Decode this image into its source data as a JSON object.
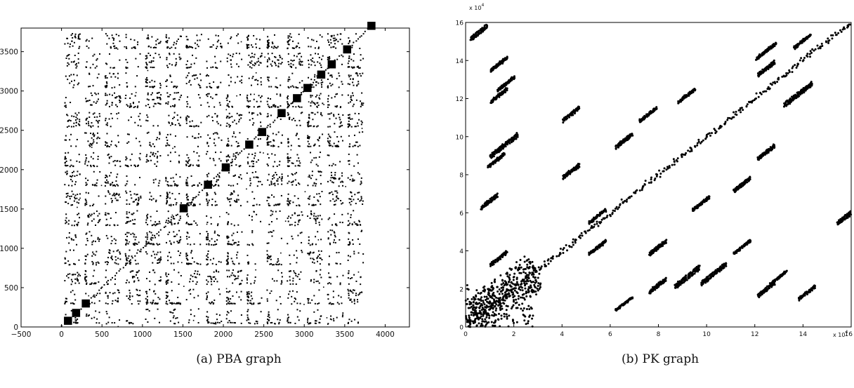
{
  "chart_data": [
    {
      "type": "scatter",
      "panel": "a",
      "caption": "(a) PBA graph",
      "xlim": [
        -500,
        4300
      ],
      "ylim": [
        0,
        3800
      ],
      "xticks": [
        -500,
        0,
        500,
        1000,
        1500,
        2000,
        2500,
        3000,
        3500,
        4000
      ],
      "yticks": [
        0,
        500,
        1000,
        1500,
        2000,
        2500,
        3000,
        3500
      ],
      "block_size": 250,
      "n_blocks": 15,
      "diagonal_dense_blocks": [
        [
          0,
          0
        ],
        [
          100,
          100
        ],
        [
          220,
          220
        ],
        [
          1430,
          1430
        ],
        [
          1730,
          1730
        ],
        [
          1950,
          1950
        ],
        [
          2240,
          2240
        ],
        [
          2400,
          2400
        ],
        [
          2640,
          2640
        ],
        [
          2830,
          2830
        ],
        [
          2960,
          2960
        ],
        [
          3130,
          3130
        ],
        [
          3260,
          3260
        ],
        [
          3450,
          3450
        ],
        [
          3750,
          3750
        ]
      ],
      "grid": false,
      "legend": "none"
    },
    {
      "type": "scatter",
      "panel": "b",
      "caption": "(b) PK graph",
      "xlim": [
        0,
        160000
      ],
      "ylim": [
        0,
        160000
      ],
      "xticks": [
        0,
        20000,
        40000,
        60000,
        80000,
        100000,
        120000,
        140000,
        160000
      ],
      "yticks": [
        0,
        20000,
        40000,
        60000,
        80000,
        100000,
        120000,
        140000,
        160000
      ],
      "x_tick_labels": [
        "0",
        "2",
        "4",
        "6",
        "8",
        "10",
        "12",
        "14",
        "16"
      ],
      "y_tick_labels": [
        "0",
        "2",
        "4",
        "6",
        "8",
        "10",
        "12",
        "14",
        "16"
      ],
      "exponent_label_x": "x 10",
      "exponent_label_y": "x 10",
      "exponent_power": "4",
      "off_diagonal_clusters": [
        [
          5800,
          155000,
          1.0
        ],
        [
          14000,
          138000,
          1.0
        ],
        [
          17000,
          128000,
          1.0
        ],
        [
          14000,
          122000,
          1.0
        ],
        [
          16000,
          95000,
          1.6
        ],
        [
          13000,
          88000,
          1.0
        ],
        [
          10000,
          66000,
          1.0
        ],
        [
          14000,
          36000,
          1.0
        ],
        [
          44000,
          112000,
          1.0
        ],
        [
          44000,
          82000,
          1.0
        ],
        [
          55000,
          58000,
          1.0
        ],
        [
          55000,
          42000,
          1.0
        ],
        [
          66000,
          98000,
          1.0
        ],
        [
          66000,
          12000,
          1.0
        ],
        [
          76000,
          112000,
          1.0
        ],
        [
          80000,
          42000,
          1.0
        ],
        [
          80000,
          22000,
          1.0
        ],
        [
          92000,
          122000,
          1.0
        ],
        [
          92000,
          26000,
          1.4
        ],
        [
          103000,
          28000,
          1.4
        ],
        [
          98000,
          65000,
          1.0
        ],
        [
          115000,
          75000,
          1.0
        ],
        [
          115000,
          42000,
          1.0
        ],
        [
          125000,
          145000,
          1.2
        ],
        [
          125000,
          136000,
          1.0
        ],
        [
          125000,
          92000,
          1.0
        ],
        [
          125000,
          20000,
          1.0
        ],
        [
          130000,
          26000,
          1.0
        ],
        [
          138000,
          122000,
          1.6
        ],
        [
          142000,
          18000,
          1.0
        ],
        [
          158000,
          58000,
          1.0
        ],
        [
          140000,
          150000,
          1.0
        ]
      ],
      "grid": false,
      "legend": "none"
    }
  ]
}
